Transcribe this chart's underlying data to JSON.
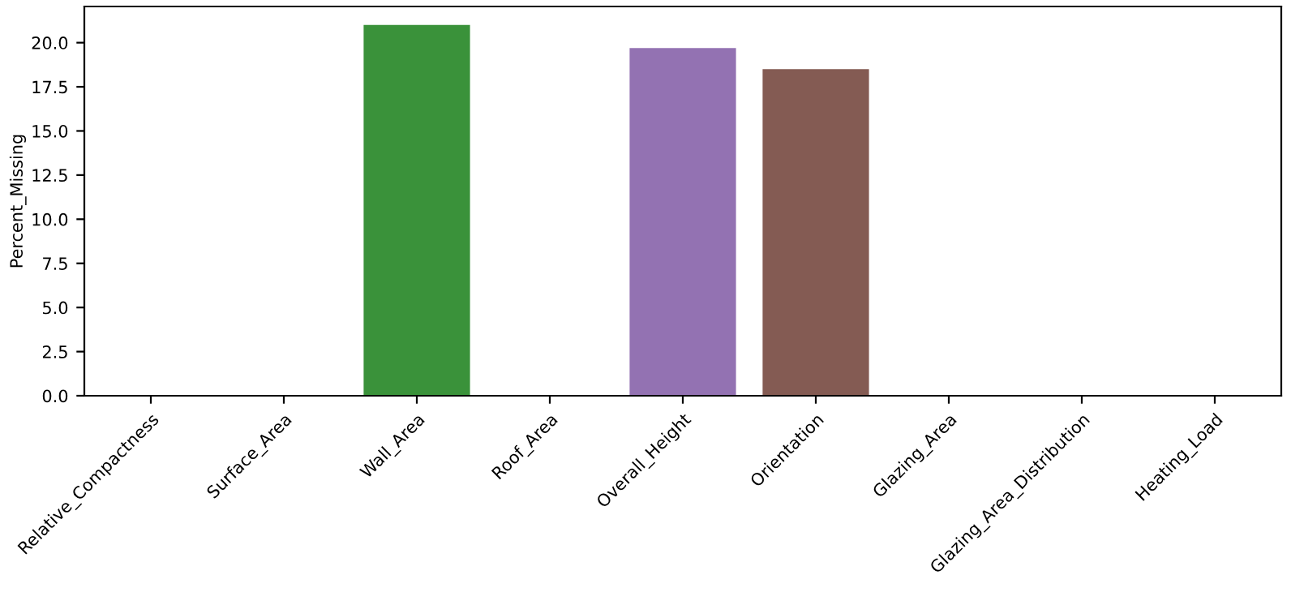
{
  "chart_data": {
    "type": "bar",
    "ylabel": "Percent_Missing",
    "categories": [
      "Relative_Compactness",
      "Surface_Area",
      "Wall_Area",
      "Roof_Area",
      "Overall_Height",
      "Orientation",
      "Glazing_Area",
      "Glazing_Area_Distribution",
      "Heating_Load"
    ],
    "values": [
      0,
      0,
      21.0,
      0,
      19.7,
      18.5,
      0,
      0,
      0
    ],
    "colors": [
      "#3274a1",
      "#e1812c",
      "#3a923a",
      "#c03d3e",
      "#9372b2",
      "#845b53",
      "#d684bd",
      "#7f7f7f",
      "#a9aa35"
    ],
    "ylim": [
      0,
      22.05
    ],
    "yticks": [
      {
        "value": 0,
        "label": "0.0"
      },
      {
        "value": 2.5,
        "label": "2.5"
      },
      {
        "value": 5,
        "label": "5.0"
      },
      {
        "value": 7.5,
        "label": "7.5"
      },
      {
        "value": 10,
        "label": "10.0"
      },
      {
        "value": 12.5,
        "label": "12.5"
      },
      {
        "value": 15,
        "label": "15.0"
      },
      {
        "value": 17.5,
        "label": "17.5"
      },
      {
        "value": 20,
        "label": "20.0"
      }
    ],
    "grid": false
  }
}
